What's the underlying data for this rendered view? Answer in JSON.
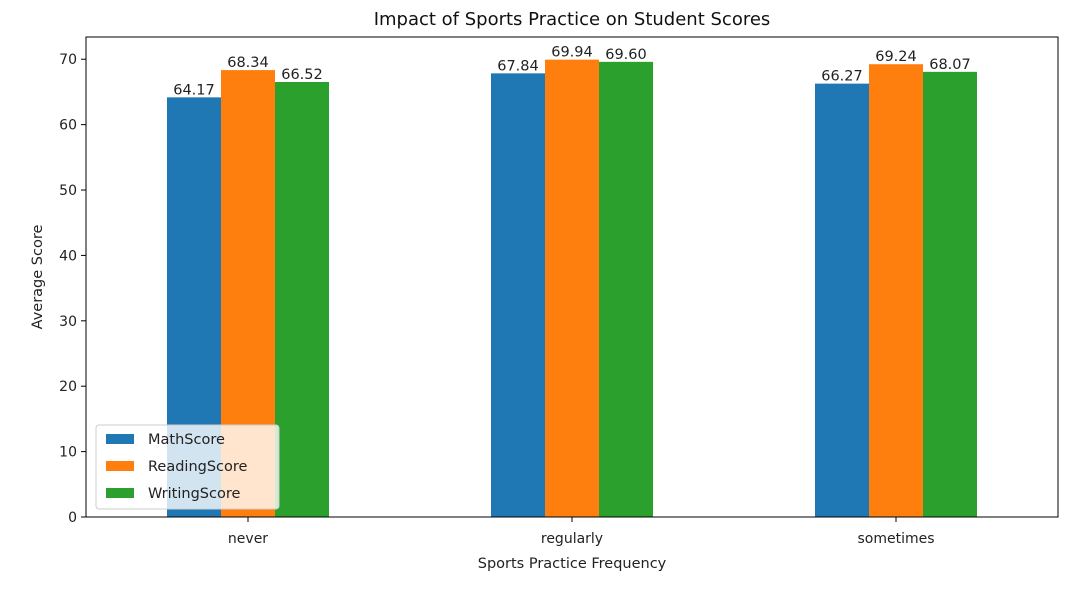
{
  "chart_data": {
    "type": "bar",
    "title": "Impact of Sports Practice on Student Scores",
    "xlabel": "Sports Practice Frequency",
    "ylabel": "Average Score",
    "categories": [
      "never",
      "regularly",
      "sometimes"
    ],
    "series": [
      {
        "name": "MathScore",
        "color": "#1f77b4",
        "values": [
          64.17,
          67.84,
          66.27
        ]
      },
      {
        "name": "ReadingScore",
        "color": "#ff7f0e",
        "values": [
          68.34,
          69.94,
          69.24
        ]
      },
      {
        "name": "WritingScore",
        "color": "#2ca02c",
        "values": [
          66.52,
          69.6,
          68.07
        ]
      }
    ],
    "ylim": [
      0,
      73.4
    ],
    "yticks": [
      0,
      10,
      20,
      30,
      40,
      50,
      60,
      70
    ],
    "grid": false,
    "legend": "lower-left",
    "data_labels": true
  }
}
